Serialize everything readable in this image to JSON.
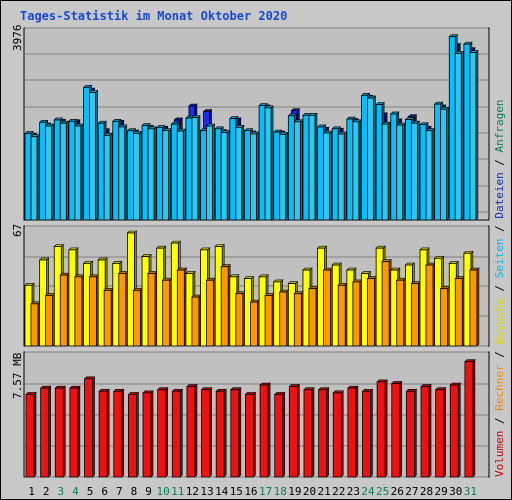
{
  "title": "Tages-Statistik im Monat Oktober 2020",
  "colors": {
    "anfragen": "#00c0ff",
    "dateien": "#1a2eea",
    "seiten": "#2dc8f0",
    "besuche": "#ffff00",
    "rechner": "#ff9800",
    "volumen": "#ee1111",
    "plot_bg": "#c0c0c0",
    "weekend": "#0a7c5c",
    "weekday": "#000000",
    "title": "#1848d8"
  },
  "chart_data": {
    "type": "bar",
    "categories": [
      "1",
      "2",
      "3",
      "4",
      "5",
      "6",
      "7",
      "8",
      "9",
      "10",
      "11",
      "12",
      "13",
      "14",
      "15",
      "16",
      "17",
      "18",
      "19",
      "20",
      "21",
      "22",
      "23",
      "24",
      "25",
      "26",
      "27",
      "28",
      "29",
      "30",
      "31"
    ],
    "weekend_days": [
      "3",
      "4",
      "10",
      "11",
      "17",
      "18",
      "24",
      "25",
      "31"
    ],
    "panels": [
      {
        "id": "requests",
        "max_label": "3976",
        "ymax": 3976,
        "series": [
          {
            "name": "Anfragen",
            "values": [
              1860,
              2100,
              2150,
              2120,
              2850,
              2080,
              2120,
              1920,
              2030,
              1990,
              2060,
              2190,
              1920,
              1960,
              2180,
              1920,
              2460,
              1890,
              2240,
              2250,
              2000,
              1960,
              2170,
              2680,
              2480,
              2280,
              2160,
              2050,
              2490,
              3940,
              3780
            ]
          },
          {
            "name": "Dateien",
            "values": [
              1820,
              2040,
              2120,
              2110,
              2790,
              1920,
              2100,
              1890,
              1990,
              1970,
              2150,
              2450,
              2330,
              1900,
              2150,
              1870,
              2430,
              1870,
              2350,
              2250,
              1950,
              1930,
              2140,
              2640,
              2260,
              2130,
              2220,
              1970,
              2430,
              3750,
              3660
            ]
          },
          {
            "name": "Seiten",
            "values": [
              1790,
              2020,
              2080,
              2020,
              2740,
              1820,
              2000,
              1860,
              1960,
              1920,
              1910,
              2200,
              2020,
              1880,
              1990,
              1850,
              2410,
              1840,
              2110,
              2250,
              1870,
              1850,
              2110,
              2620,
              2060,
              2040,
              2080,
              1920,
              2380,
              3580,
              3600
            ]
          }
        ]
      },
      {
        "id": "visits",
        "max_label": "67",
        "ymax": 67,
        "series": [
          {
            "name": "Besuche",
            "values": [
              36,
              51,
              59,
              57,
              49,
              51,
              49,
              67,
              53,
              58,
              61,
              43,
              57,
              59,
              41,
              40,
              41,
              38,
              37,
              45,
              58,
              48,
              45,
              43,
              58,
              45,
              48,
              57,
              52,
              49,
              55
            ]
          },
          {
            "name": "Rechner",
            "values": [
              25,
              30,
              42,
              41,
              41,
              33,
              43,
              33,
              43,
              39,
              45,
              29,
              39,
              47,
              31,
              26,
              30,
              32,
              31,
              34,
              45,
              36,
              38,
              40,
              50,
              39,
              37,
              48,
              34,
              40,
              45
            ]
          }
        ]
      },
      {
        "id": "volume",
        "max_label": "7.57 MB",
        "ymax": 7.57,
        "series": [
          {
            "name": "Volumen",
            "values": [
              5.3,
              5.7,
              5.7,
              5.7,
              6.3,
              5.5,
              5.5,
              5.3,
              5.4,
              5.6,
              5.5,
              5.8,
              5.6,
              5.5,
              5.6,
              5.3,
              5.9,
              5.3,
              5.8,
              5.6,
              5.6,
              5.4,
              5.7,
              5.5,
              6.1,
              6.0,
              5.5,
              5.8,
              5.6,
              5.9,
              7.4
            ]
          }
        ]
      }
    ],
    "legend": [
      {
        "text": "Volumen",
        "color": "#cc0000"
      },
      {
        "text": " / ",
        "color": "#000000"
      },
      {
        "text": "Rechner",
        "color": "#ff8800"
      },
      {
        "text": " / ",
        "color": "#000000"
      },
      {
        "text": "Besuche",
        "color": "#dddd00"
      },
      {
        "text": " / ",
        "color": "#000000"
      },
      {
        "text": "Seiten",
        "color": "#00b8e8"
      },
      {
        "text": " / ",
        "color": "#000000"
      },
      {
        "text": "Dateien",
        "color": "#1028c8"
      },
      {
        "text": " / ",
        "color": "#000000"
      },
      {
        "text": "Anfragen",
        "color": "#0a7c5c"
      }
    ]
  }
}
